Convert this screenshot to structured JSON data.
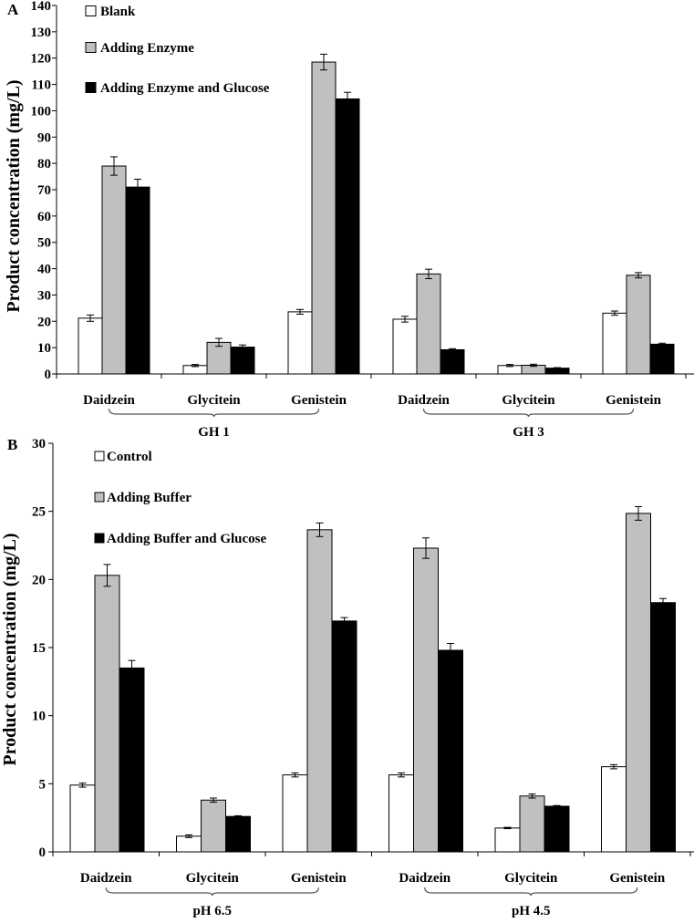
{
  "chart_data": [
    {
      "panel": "A",
      "type": "bar",
      "ylabel": "Product concentration  (mg/L)",
      "ylim": [
        0,
        140
      ],
      "yticks": [
        0,
        10,
        20,
        30,
        40,
        50,
        60,
        70,
        80,
        90,
        100,
        110,
        120,
        130,
        140
      ],
      "categories": [
        "Daidzein",
        "Glycitein",
        "Genistein",
        "Daidzein",
        "Glycitein",
        "Genistein"
      ],
      "groups": [
        {
          "label": "GH 1",
          "from": 0,
          "to": 2
        },
        {
          "label": "GH 3",
          "from": 3,
          "to": 5
        }
      ],
      "series": [
        {
          "name": "Blank",
          "color": "#ffffff",
          "values": [
            21.2,
            3.2,
            23.6,
            20.8,
            3.2,
            23.1
          ],
          "errors": [
            1.2,
            0.4,
            0.9,
            1.1,
            0.4,
            0.8
          ]
        },
        {
          "name": "Adding Enzyme",
          "color": "#c0c0c0",
          "values": [
            79.0,
            12.0,
            118.5,
            38.0,
            3.3,
            37.5
          ],
          "errors": [
            3.5,
            1.5,
            3.0,
            1.8,
            0.4,
            1.0
          ]
        },
        {
          "name": "Adding Enzyme and Glucose",
          "color": "#000000",
          "values": [
            71.0,
            10.2,
            104.5,
            9.2,
            2.2,
            11.3
          ],
          "errors": [
            3.0,
            0.8,
            2.5,
            0.4,
            0.2,
            0.4
          ]
        }
      ]
    },
    {
      "panel": "B",
      "type": "bar",
      "ylabel": "Product concentration (mg/L)",
      "ylim": [
        0,
        30
      ],
      "yticks": [
        0,
        5,
        10,
        15,
        20,
        25,
        30
      ],
      "categories": [
        "Daidzein",
        "Glycitein",
        "Genistein",
        "Daidzein",
        "Glycitein",
        "Genistein"
      ],
      "groups": [
        {
          "label": "pH 6.5",
          "from": 0,
          "to": 2
        },
        {
          "label": "pH 4.5",
          "from": 3,
          "to": 5
        }
      ],
      "series": [
        {
          "name": "Control",
          "color": "#ffffff",
          "values": [
            4.9,
            1.15,
            5.65,
            5.65,
            1.75,
            6.25
          ],
          "errors": [
            0.15,
            0.1,
            0.15,
            0.15,
            0.05,
            0.15
          ]
        },
        {
          "name": "Adding Buffer",
          "color": "#c0c0c0",
          "values": [
            20.3,
            3.8,
            23.65,
            22.3,
            4.1,
            24.85
          ],
          "errors": [
            0.8,
            0.15,
            0.5,
            0.75,
            0.15,
            0.5
          ]
        },
        {
          "name": "Adding Buffer and Glucose",
          "color": "#000000",
          "values": [
            13.5,
            2.6,
            16.95,
            14.8,
            3.35,
            18.3
          ],
          "errors": [
            0.55,
            0.05,
            0.25,
            0.5,
            0.05,
            0.3
          ]
        }
      ]
    }
  ]
}
